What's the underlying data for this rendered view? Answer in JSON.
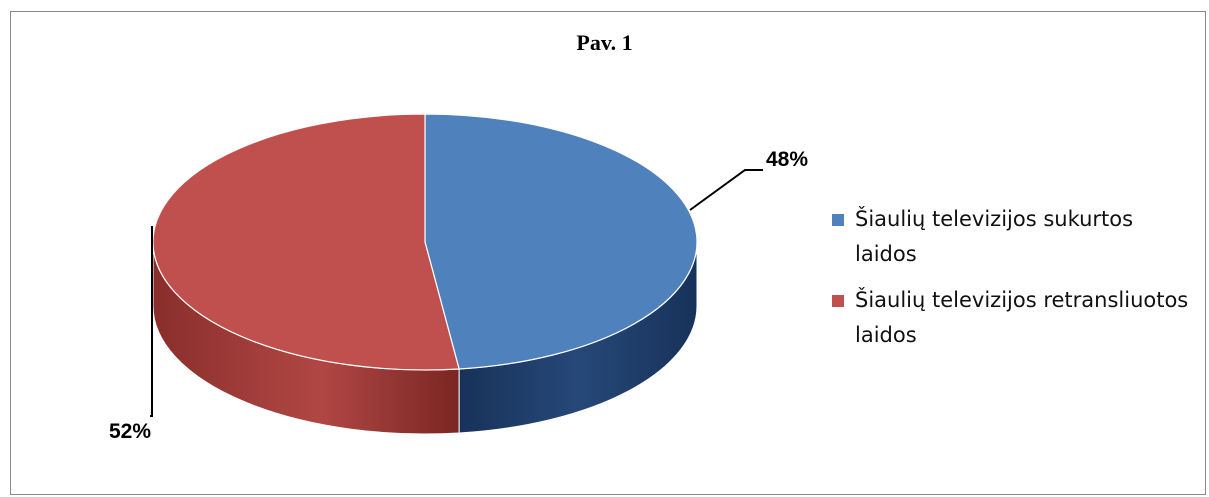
{
  "chart_data": {
    "type": "pie",
    "title": "Pav. 1",
    "slices": [
      {
        "label": "Šiaulių televizijos sukurtos laidos",
        "value": 48,
        "display": "48%",
        "color": "#4f81bd"
      },
      {
        "label": "Šiaulių televizijos retransliuotos laidos",
        "value": 52,
        "display": "52%",
        "color": "#c0504d"
      }
    ],
    "three_d": true,
    "legend_position": "right"
  }
}
